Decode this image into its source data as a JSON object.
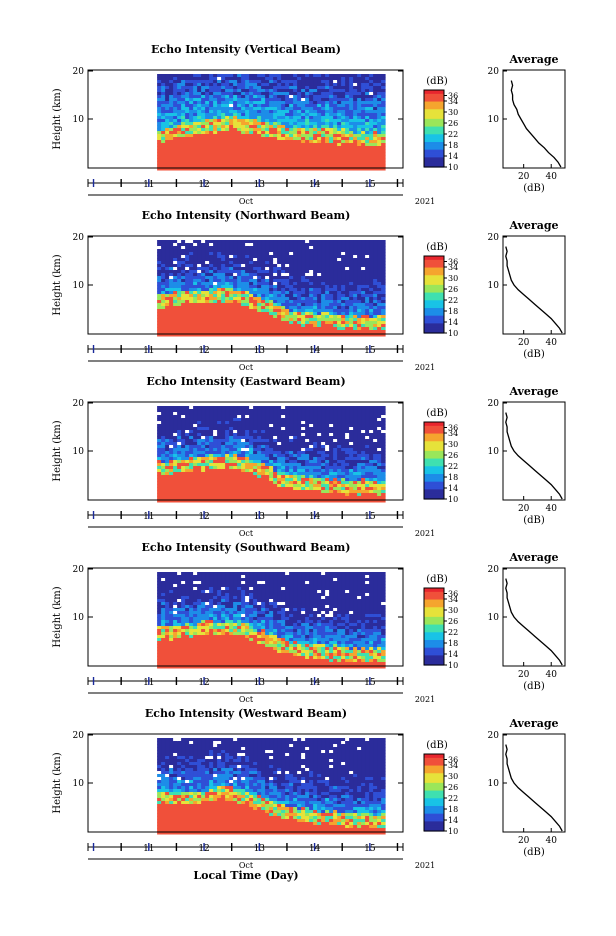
{
  "chart_data": [
    {
      "type": "heatmap",
      "title": "Echo Intensity (Vertical Beam)",
      "ylabel": "Height (km)",
      "xlabel": "Oct",
      "year_label": "2021",
      "x_ticks": [
        "11",
        "12",
        "13",
        "14",
        "15"
      ],
      "y_ticks": [
        "20",
        "10"
      ],
      "ylim": [
        0,
        20
      ],
      "data_start_day": 11.65,
      "data_end_day": 15.75,
      "colorbar": {
        "unit": "(dB)",
        "ticks": [
          "36",
          "34",
          "30",
          "26",
          "22",
          "18",
          "14",
          "10"
        ],
        "range": [
          10,
          38
        ]
      },
      "boundary": [
        [
          11.65,
          6.5
        ],
        [
          12.0,
          7.5
        ],
        [
          12.5,
          8.8
        ],
        [
          13.0,
          9.3
        ],
        [
          13.5,
          8.5
        ],
        [
          14.0,
          7.0
        ],
        [
          14.5,
          6.5
        ],
        [
          15.0,
          6.3
        ],
        [
          15.75,
          6.0
        ]
      ],
      "average": {
        "title": "Average",
        "xlabel": "(dB)",
        "x_ticks": [
          "20",
          "40"
        ],
        "y_ticks": [
          "20",
          "10"
        ],
        "xlim": [
          5,
          50
        ],
        "ylim": [
          0,
          20
        ],
        "x": [
          47,
          45,
          42,
          38,
          35,
          31,
          28,
          25,
          22,
          20,
          18,
          16,
          15,
          13,
          12,
          12,
          11,
          12,
          11
        ],
        "y": [
          0,
          1,
          2,
          3,
          4,
          5,
          6,
          7,
          8,
          9,
          10,
          11,
          12,
          13,
          14,
          15,
          16,
          17,
          18
        ]
      }
    },
    {
      "type": "heatmap",
      "title": "Echo Intensity (Northward Beam)",
      "ylabel": "Height (km)",
      "xlabel": "Oct",
      "year_label": "2021",
      "x_ticks": [
        "11",
        "12",
        "13",
        "14",
        "15"
      ],
      "y_ticks": [
        "20",
        "10"
      ],
      "ylim": [
        0,
        20
      ],
      "data_start_day": 11.65,
      "data_end_day": 15.75,
      "colorbar": {
        "unit": "(dB)",
        "ticks": [
          "36",
          "34",
          "30",
          "26",
          "22",
          "18",
          "14",
          "10"
        ],
        "range": [
          10,
          38
        ]
      },
      "boundary": [
        [
          11.65,
          6.8
        ],
        [
          12.0,
          7.2
        ],
        [
          12.5,
          7.8
        ],
        [
          13.0,
          8.0
        ],
        [
          13.5,
          6.0
        ],
        [
          14.0,
          3.8
        ],
        [
          14.5,
          3.2
        ],
        [
          15.0,
          2.5
        ],
        [
          15.75,
          2.2
        ]
      ],
      "average": {
        "title": "Average",
        "xlabel": "(dB)",
        "x_ticks": [
          "20",
          "40"
        ],
        "y_ticks": [
          "20",
          "10"
        ],
        "xlim": [
          5,
          50
        ],
        "ylim": [
          0,
          20
        ],
        "x": [
          48,
          46,
          43,
          40,
          36,
          32,
          28,
          24,
          20,
          16,
          13,
          11,
          10,
          9,
          8,
          8,
          7,
          8,
          7
        ],
        "y": [
          0,
          1,
          2,
          3,
          4,
          5,
          6,
          7,
          8,
          9,
          10,
          11,
          12,
          13,
          14,
          15,
          16,
          17,
          18
        ]
      }
    },
    {
      "type": "heatmap",
      "title": "Echo Intensity (Eastward Beam)",
      "ylabel": "Height (km)",
      "xlabel": "Oct",
      "year_label": "2021",
      "x_ticks": [
        "11",
        "12",
        "13",
        "14",
        "15"
      ],
      "y_ticks": [
        "20",
        "10"
      ],
      "ylim": [
        0,
        20
      ],
      "data_start_day": 11.65,
      "data_end_day": 15.75,
      "colorbar": {
        "unit": "(dB)",
        "ticks": [
          "36",
          "34",
          "30",
          "26",
          "22",
          "18",
          "14",
          "10"
        ],
        "range": [
          10,
          38
        ]
      },
      "boundary": [
        [
          11.65,
          6.6
        ],
        [
          12.0,
          7.0
        ],
        [
          12.5,
          7.5
        ],
        [
          13.0,
          8.0
        ],
        [
          13.5,
          6.2
        ],
        [
          14.0,
          3.8
        ],
        [
          14.5,
          3.5
        ],
        [
          15.0,
          2.8
        ],
        [
          15.75,
          2.5
        ]
      ],
      "average": {
        "title": "Average",
        "xlabel": "(dB)",
        "x_ticks": [
          "20",
          "40"
        ],
        "y_ticks": [
          "20",
          "10"
        ],
        "xlim": [
          5,
          50
        ],
        "ylim": [
          0,
          20
        ],
        "x": [
          48,
          46,
          43,
          40,
          36,
          32,
          28,
          24,
          20,
          16,
          13,
          11,
          10,
          9,
          8,
          8,
          7,
          8,
          7
        ],
        "y": [
          0,
          1,
          2,
          3,
          4,
          5,
          6,
          7,
          8,
          9,
          10,
          11,
          12,
          13,
          14,
          15,
          16,
          17,
          18
        ]
      }
    },
    {
      "type": "heatmap",
      "title": "Echo Intensity (Southward Beam)",
      "ylabel": "Height (km)",
      "xlabel": "Oct",
      "year_label": "2021",
      "x_ticks": [
        "11",
        "12",
        "13",
        "14",
        "15"
      ],
      "y_ticks": [
        "20",
        "10"
      ],
      "ylim": [
        0,
        20
      ],
      "data_start_day": 11.65,
      "data_end_day": 15.75,
      "colorbar": {
        "unit": "(dB)",
        "ticks": [
          "36",
          "34",
          "30",
          "26",
          "22",
          "18",
          "14",
          "10"
        ],
        "range": [
          10,
          38
        ]
      },
      "boundary": [
        [
          11.65,
          6.8
        ],
        [
          12.0,
          7.2
        ],
        [
          12.5,
          7.8
        ],
        [
          13.0,
          8.2
        ],
        [
          13.5,
          6.0
        ],
        [
          14.0,
          3.8
        ],
        [
          14.5,
          3.3
        ],
        [
          15.0,
          2.6
        ],
        [
          15.75,
          2.3
        ]
      ],
      "average": {
        "title": "Average",
        "xlabel": "(dB)",
        "x_ticks": [
          "20",
          "40"
        ],
        "y_ticks": [
          "20",
          "10"
        ],
        "xlim": [
          5,
          50
        ],
        "ylim": [
          0,
          20
        ],
        "x": [
          48,
          46,
          43,
          40,
          36,
          32,
          28,
          24,
          20,
          16,
          13,
          11,
          10,
          9,
          8,
          8,
          7,
          8,
          7
        ],
        "y": [
          0,
          1,
          2,
          3,
          4,
          5,
          6,
          7,
          8,
          9,
          10,
          11,
          12,
          13,
          14,
          15,
          16,
          17,
          18
        ]
      }
    },
    {
      "type": "heatmap",
      "title": "Echo Intensity (Westward Beam)",
      "ylabel": "Height (km)",
      "xlabel": "Oct",
      "year_label": "2021",
      "x_ticks": [
        "11",
        "12",
        "13",
        "14",
        "15"
      ],
      "y_ticks": [
        "20",
        "10"
      ],
      "ylim": [
        0,
        20
      ],
      "data_start_day": 11.65,
      "data_end_day": 15.75,
      "colorbar": {
        "unit": "(dB)",
        "ticks": [
          "36",
          "34",
          "30",
          "26",
          "22",
          "18",
          "14",
          "10"
        ],
        "range": [
          10,
          38
        ]
      },
      "boundary": [
        [
          11.65,
          6.6
        ],
        [
          12.0,
          7.0
        ],
        [
          12.5,
          7.6
        ],
        [
          13.0,
          8.0
        ],
        [
          13.5,
          6.0
        ],
        [
          14.0,
          3.6
        ],
        [
          14.5,
          3.2
        ],
        [
          15.0,
          2.6
        ],
        [
          15.75,
          2.3
        ]
      ],
      "average": {
        "title": "Average",
        "xlabel": "(dB)",
        "x_ticks": [
          "20",
          "40"
        ],
        "y_ticks": [
          "20",
          "10"
        ],
        "xlim": [
          5,
          50
        ],
        "ylim": [
          0,
          20
        ],
        "x": [
          48,
          46,
          43,
          40,
          36,
          32,
          28,
          24,
          20,
          16,
          13,
          11,
          10,
          9,
          8,
          8,
          7,
          8,
          7
        ],
        "y": [
          0,
          1,
          2,
          3,
          4,
          5,
          6,
          7,
          8,
          9,
          10,
          11,
          12,
          13,
          14,
          15,
          16,
          17,
          18
        ]
      }
    }
  ],
  "bottom_label": "Local Time (Day)",
  "colormap": [
    "#2b2c9b",
    "#2f4fd6",
    "#1d8de8",
    "#19c3e6",
    "#3fe0b0",
    "#9ae65a",
    "#e6e23a",
    "#f5a52e",
    "#f0503a",
    "#e8262e"
  ]
}
